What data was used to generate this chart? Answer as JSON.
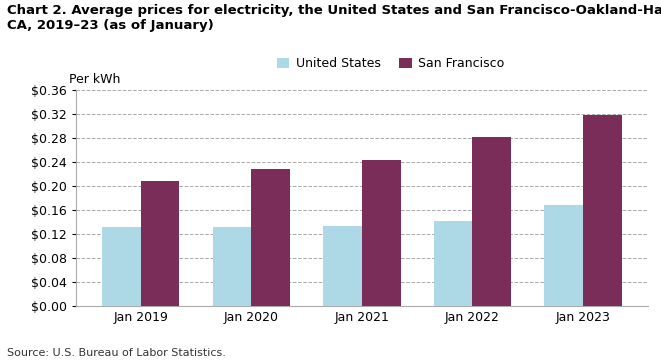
{
  "title_line1": "Chart 2. Average prices for electricity, the United States and San Francisco-Oakland-Hayward,",
  "title_line2": "CA, 2019–23 (as of January)",
  "ylabel": "Per kWh",
  "source": "Source: U.S. Bureau of Labor Statistics.",
  "categories": [
    "Jan 2019",
    "Jan 2020",
    "Jan 2021",
    "Jan 2022",
    "Jan 2023"
  ],
  "us_values": [
    0.132,
    0.132,
    0.134,
    0.142,
    0.168
  ],
  "sf_values": [
    0.208,
    0.228,
    0.244,
    0.282,
    0.318
  ],
  "us_color": "#ADD8E6",
  "sf_color": "#7B2D5A",
  "legend_us": "United States",
  "legend_sf": "San Francisco",
  "ylim": [
    0,
    0.36
  ],
  "yticks": [
    0.0,
    0.04,
    0.08,
    0.12,
    0.16,
    0.2,
    0.24,
    0.28,
    0.32,
    0.36
  ],
  "bar_width": 0.35,
  "grid_color": "#aaaaaa",
  "background_color": "#ffffff",
  "title_fontsize": 9.5,
  "axis_label_fontsize": 9,
  "tick_fontsize": 9,
  "legend_fontsize": 9,
  "source_fontsize": 8
}
